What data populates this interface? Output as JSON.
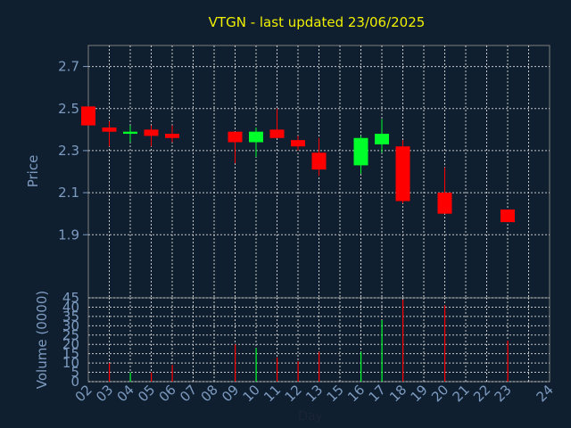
{
  "title": "VTGN - last updated 23/06/2025",
  "colors": {
    "up": "#00ff2a",
    "down": "#ff0000",
    "background": "#0f1f30",
    "title": "#f0f000",
    "axis_text": "#7d9bc0"
  },
  "chart_data": [
    {
      "type": "candlestick",
      "ylabel": "Price",
      "ylim": [
        1.6,
        2.8
      ],
      "yticks": [
        "1.9",
        "2.1",
        "2.3",
        "2.5",
        "2.7"
      ],
      "grid": true,
      "days": [
        "02",
        "03",
        "04",
        "05",
        "06",
        "07",
        "08",
        "09",
        "10",
        "11",
        "12",
        "13",
        "15",
        "16",
        "17",
        "18",
        "19",
        "20",
        "21",
        "22",
        "23",
        "24"
      ],
      "candles": [
        {
          "day": "02",
          "open": 2.51,
          "high": 2.51,
          "low": 2.42,
          "close": 2.42
        },
        {
          "day": "03",
          "open": 2.41,
          "high": 2.44,
          "low": 2.32,
          "close": 2.39
        },
        {
          "day": "04",
          "open": 2.38,
          "high": 2.42,
          "low": 2.34,
          "close": 2.39
        },
        {
          "day": "05",
          "open": 2.4,
          "high": 2.42,
          "low": 2.32,
          "close": 2.37
        },
        {
          "day": "06",
          "open": 2.38,
          "high": 2.42,
          "low": 2.34,
          "close": 2.36
        },
        {
          "day": "09",
          "open": 2.39,
          "high": 2.39,
          "low": 2.24,
          "close": 2.34
        },
        {
          "day": "10",
          "open": 2.34,
          "high": 2.41,
          "low": 2.27,
          "close": 2.39
        },
        {
          "day": "11",
          "open": 2.4,
          "high": 2.5,
          "low": 2.36,
          "close": 2.36
        },
        {
          "day": "12",
          "open": 2.35,
          "high": 2.37,
          "low": 2.3,
          "close": 2.32
        },
        {
          "day": "13",
          "open": 2.29,
          "high": 2.36,
          "low": 2.18,
          "close": 2.21
        },
        {
          "day": "16",
          "open": 2.23,
          "high": 2.37,
          "low": 2.19,
          "close": 2.36
        },
        {
          "day": "17",
          "open": 2.33,
          "high": 2.45,
          "low": 2.29,
          "close": 2.38
        },
        {
          "day": "18",
          "open": 2.32,
          "high": 2.35,
          "low": 2.05,
          "close": 2.06
        },
        {
          "day": "20",
          "open": 2.1,
          "high": 2.22,
          "low": 2.0,
          "close": 2.0
        },
        {
          "day": "23",
          "open": 2.02,
          "high": 2.02,
          "low": 1.96,
          "close": 1.96
        }
      ]
    },
    {
      "type": "bar",
      "ylabel": "Volume (0000)",
      "xlabel": "Day",
      "ylim": [
        0,
        45
      ],
      "yticks": [
        "0",
        "5",
        "10",
        "15",
        "20",
        "25",
        "30",
        "35",
        "40",
        "45"
      ],
      "grid": true,
      "volumes": [
        {
          "day": "03",
          "value": 10,
          "color": "down"
        },
        {
          "day": "04",
          "value": 5,
          "color": "up"
        },
        {
          "day": "05",
          "value": 5,
          "color": "down"
        },
        {
          "day": "06",
          "value": 9,
          "color": "down"
        },
        {
          "day": "09",
          "value": 20,
          "color": "down"
        },
        {
          "day": "10",
          "value": 18,
          "color": "up"
        },
        {
          "day": "11",
          "value": 13,
          "color": "down"
        },
        {
          "day": "12",
          "value": 11,
          "color": "down"
        },
        {
          "day": "13",
          "value": 16,
          "color": "down"
        },
        {
          "day": "16",
          "value": 16,
          "color": "up"
        },
        {
          "day": "17",
          "value": 33,
          "color": "up"
        },
        {
          "day": "18",
          "value": 44,
          "color": "down"
        },
        {
          "day": "20",
          "value": 41,
          "color": "down"
        },
        {
          "day": "23",
          "value": 22,
          "color": "down"
        }
      ]
    }
  ]
}
